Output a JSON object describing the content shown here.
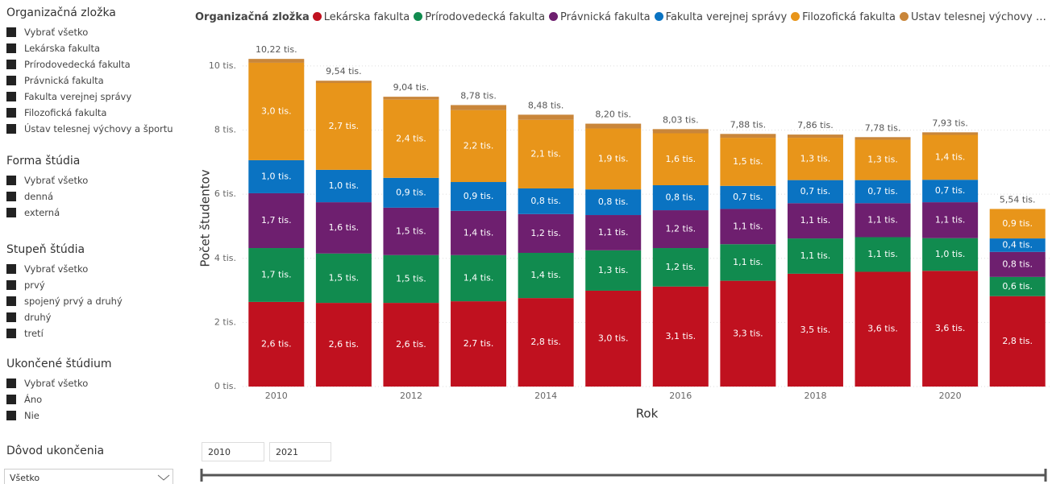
{
  "chart_data": {
    "type": "stacked_bar",
    "legend_title": "Organizačná zložka",
    "x_label": "Rok",
    "y_label": "Počet študentov",
    "categories": [
      "2010",
      null,
      "2012",
      null,
      "2014",
      null,
      "2016",
      null,
      "2018",
      null,
      "2020",
      null
    ],
    "series": [
      {
        "name": "Lekárska fakulta",
        "color": "#c0111f",
        "values": [
          2640,
          2610,
          2610,
          2660,
          2760,
          2990,
          3120,
          3300,
          3520,
          3580,
          3610,
          2820
        ],
        "value_labels": [
          "2,6 tis.",
          "2,6 tis.",
          "2,6 tis.",
          "2,7 tis.",
          "2,8 tis.",
          "3,0 tis.",
          "3,1 tis.",
          "3,3 tis.",
          "3,5 tis.",
          "3,6 tis.",
          "3,6 tis.",
          "2,8 tis."
        ]
      },
      {
        "name": "Prírodovedecká fakulta",
        "color": "#118b4f",
        "values": [
          1680,
          1540,
          1490,
          1440,
          1410,
          1260,
          1200,
          1140,
          1100,
          1080,
          1020,
          600
        ],
        "value_labels": [
          "1,7 tis.",
          "1,5 tis.",
          "1,5 tis.",
          "1,4 tis.",
          "1,4 tis.",
          "1,3 tis.",
          "1,2 tis.",
          "1,1 tis.",
          "1,1 tis.",
          "1,1 tis.",
          "1,0 tis.",
          "0,6 tis."
        ]
      },
      {
        "name": "Právnická fakulta",
        "color": "#6e1f6f",
        "values": [
          1710,
          1600,
          1480,
          1380,
          1210,
          1100,
          1180,
          1100,
          1100,
          1060,
          1120,
          780
        ],
        "value_labels": [
          "1,7 tis.",
          "1,6 tis.",
          "1,5 tis.",
          "1,4 tis.",
          "1,2 tis.",
          "1,1 tis.",
          "1,2 tis.",
          "1,1 tis.",
          "1,1 tis.",
          "1,1 tis.",
          "1,1 tis.",
          "0,8 tis."
        ]
      },
      {
        "name": "Fakulta verejnej správy",
        "color": "#0a73c2",
        "values": [
          1030,
          1010,
          930,
          900,
          800,
          800,
          780,
          720,
          720,
          720,
          700,
          420
        ],
        "value_labels": [
          "1,0 tis.",
          "1,0 tis.",
          "0,9 tis.",
          "0,9 tis.",
          "0,8 tis.",
          "0,8 tis.",
          "0,8 tis.",
          "0,7 tis.",
          "0,7 tis.",
          "0,7 tis.",
          "0,7 tis.",
          "0,4 tis."
        ]
      },
      {
        "name": "Filozofická fakulta",
        "color": "#e8951a",
        "values": [
          3040,
          2710,
          2440,
          2240,
          2140,
          1900,
          1620,
          1500,
          1320,
          1260,
          1400,
          920
        ],
        "value_labels": [
          "3,0 tis.",
          "2,7 tis.",
          "2,4 tis.",
          "2,2 tis.",
          "2,1 tis.",
          "1,9 tis.",
          "1,6 tis.",
          "1,5 tis.",
          "1,3 tis.",
          "1,3 tis.",
          "1,4 tis.",
          "0,9 tis."
        ]
      },
      {
        "name": "Ústav telesnej výchovy a športu",
        "color": "#c9863a",
        "values": [
          120,
          70,
          90,
          160,
          160,
          150,
          130,
          120,
          100,
          80,
          80,
          0
        ]
      }
    ],
    "totals": [
      10220,
      9540,
      9040,
      8780,
      8480,
      8200,
      8030,
      7880,
      7860,
      7780,
      7930,
      5540
    ],
    "total_labels": [
      "10,22 tis.",
      "9,54 tis.",
      "9,04 tis.",
      "8,78 tis.",
      "8,48 tis.",
      "8,20 tis.",
      "8,03 tis.",
      "7,88 tis.",
      "7,86 tis.",
      "7,78 tis.",
      "7,93 tis.",
      "5,54 tis."
    ],
    "ylim": [
      0,
      10500
    ],
    "yticks": [
      {
        "value": 0,
        "label": "0 tis."
      },
      {
        "value": 2000,
        "label": "2 tis."
      },
      {
        "value": 4000,
        "label": "4 tis."
      },
      {
        "value": 6000,
        "label": "6 tis."
      },
      {
        "value": 8000,
        "label": "8 tis."
      },
      {
        "value": 10000,
        "label": "10 tis."
      }
    ],
    "grid": true
  },
  "slicers": [
    {
      "title": "Organizačná zložka",
      "items": [
        "Vybrať všetko",
        "Lekárska fakulta",
        "Prírodovedecká fakulta",
        "Právnická fakulta",
        "Fakulta verejnej správy",
        "Filozofická fakulta",
        "Ústav telesnej výchovy a športu"
      ]
    },
    {
      "title": "Forma štúdia",
      "items": [
        "Vybrať všetko",
        "denná",
        "externá"
      ]
    },
    {
      "title": "Stupeň štúdia",
      "items": [
        "Vybrať všetko",
        "prvý",
        "spojený prvý a druhý",
        "druhý",
        "tretí"
      ]
    },
    {
      "title": "Ukončené štúdium",
      "items": [
        "Vybrať všetko",
        "Áno",
        "Nie"
      ]
    }
  ],
  "dropdown": {
    "title": "Dôvod ukončenia",
    "value": "Všetko"
  },
  "range": {
    "from": "2010",
    "to": "2021"
  }
}
